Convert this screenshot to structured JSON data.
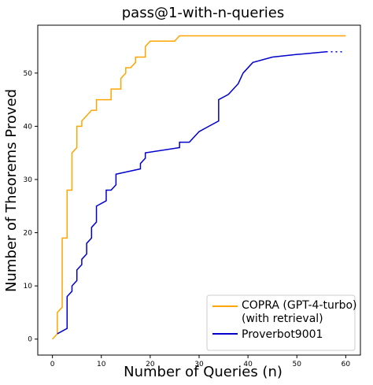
{
  "chart_data": {
    "type": "line",
    "title": "pass@1-with-n-queries",
    "xlabel": "Number of Queries (n)",
    "ylabel": "Number of Theorems Proved",
    "xlim": [
      -3,
      63
    ],
    "ylim": [
      -3,
      59
    ],
    "xticks": [
      0,
      10,
      20,
      30,
      40,
      50,
      60
    ],
    "yticks": [
      0,
      10,
      20,
      30,
      40,
      50
    ],
    "grid": false,
    "legend_position": "lower-right",
    "series": [
      {
        "name_lines": [
          "COPRA (GPT-4-turbo)",
          "(with retrieval)"
        ],
        "color": "#ffa500",
        "linestyle": "solid",
        "points": [
          [
            0,
            0
          ],
          [
            1,
            1
          ],
          [
            1,
            5
          ],
          [
            2,
            6
          ],
          [
            2,
            19
          ],
          [
            3,
            19
          ],
          [
            3,
            28
          ],
          [
            4,
            28
          ],
          [
            4,
            35
          ],
          [
            5,
            36
          ],
          [
            5,
            40
          ],
          [
            6,
            40
          ],
          [
            6,
            41
          ],
          [
            7,
            42
          ],
          [
            8,
            43
          ],
          [
            9,
            43
          ],
          [
            9,
            45
          ],
          [
            11,
            45
          ],
          [
            12,
            45
          ],
          [
            12,
            47
          ],
          [
            14,
            47
          ],
          [
            14,
            49
          ],
          [
            15,
            50
          ],
          [
            15,
            51
          ],
          [
            16,
            51
          ],
          [
            17,
            52
          ],
          [
            17,
            53
          ],
          [
            19,
            53
          ],
          [
            19,
            55
          ],
          [
            20,
            56
          ],
          [
            25,
            56
          ],
          [
            26,
            57
          ],
          [
            60,
            57
          ]
        ]
      },
      {
        "name": "Proverbot9001",
        "color": "#0000cd",
        "linestyle": "solid",
        "points": [
          [
            1,
            1
          ],
          [
            3,
            2
          ],
          [
            3,
            8
          ],
          [
            4,
            9
          ],
          [
            4,
            10
          ],
          [
            5,
            11
          ],
          [
            5,
            13
          ],
          [
            6,
            14
          ],
          [
            6,
            15
          ],
          [
            7,
            16
          ],
          [
            7,
            18
          ],
          [
            8,
            19
          ],
          [
            8,
            21
          ],
          [
            9,
            22
          ],
          [
            9,
            25
          ],
          [
            11,
            26
          ],
          [
            11,
            28
          ],
          [
            12,
            28
          ],
          [
            13,
            29
          ],
          [
            13,
            31
          ],
          [
            18,
            32
          ],
          [
            18,
            33
          ],
          [
            19,
            34
          ],
          [
            19,
            35
          ],
          [
            26,
            36
          ],
          [
            26,
            37
          ],
          [
            28,
            37
          ],
          [
            30,
            39
          ],
          [
            32,
            40
          ],
          [
            34,
            41
          ],
          [
            34,
            45
          ],
          [
            36,
            46
          ],
          [
            38,
            48
          ],
          [
            39,
            50
          ],
          [
            40,
            51
          ],
          [
            41,
            52
          ],
          [
            45,
            53
          ],
          [
            50,
            53.5
          ],
          [
            56,
            54
          ]
        ],
        "tail_dotted": [
          [
            56,
            54
          ],
          [
            59.5,
            54
          ]
        ]
      }
    ]
  }
}
